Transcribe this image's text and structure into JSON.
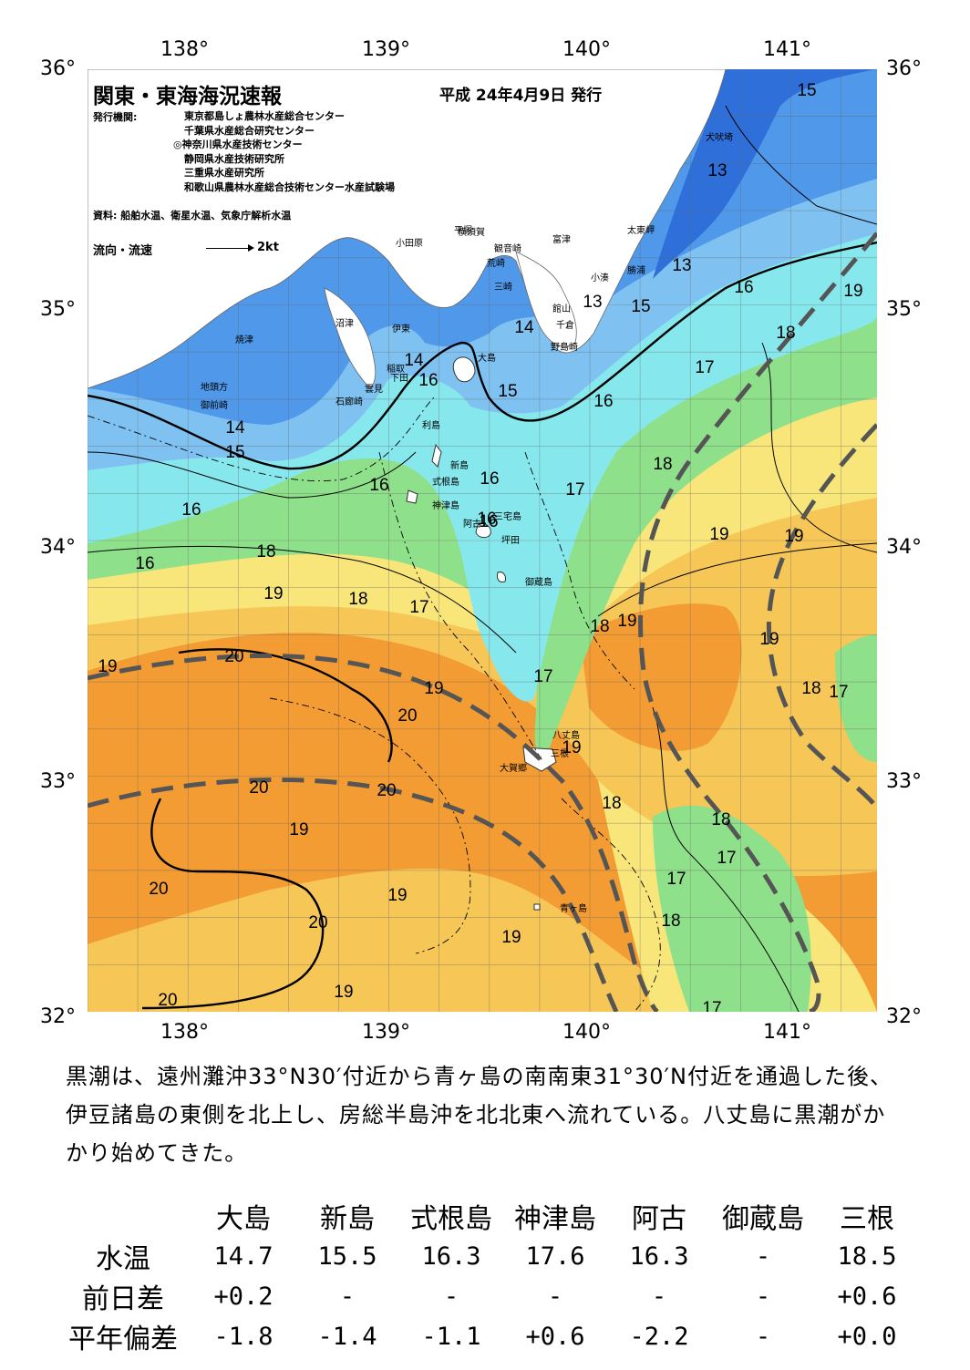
{
  "header": {
    "title": "関東・東海海況速報",
    "date": "平成 24年4月9日 発行",
    "issuer_label": "発行機関:",
    "issuers": [
      "東京都島しょ農林水産総合センター",
      "千葉県水産総合研究センター",
      "◎神奈川県水産技術センター",
      "静岡県水産技術研究所",
      "三重県水産研究所",
      "和歌山県農林水産総合技術センター水産試験場"
    ],
    "sources": "資料: 船舶水温、衛星水温、気象庁解析水温",
    "flow_label": "流向・流速",
    "flow_scale": "2kt"
  },
  "axes": {
    "lon_labels": [
      "138°",
      "139°",
      "140°",
      "141°"
    ],
    "lat_labels": [
      "36°",
      "35°",
      "34°",
      "33°",
      "32°"
    ]
  },
  "colors": {
    "c13": "#2f6fd9",
    "c14": "#4f98ea",
    "c15": "#7fc2f2",
    "c16": "#86e8ec",
    "c17": "#8fe08a",
    "c18": "#f8e67a",
    "c19": "#f6c657",
    "c20": "#f39c33",
    "land": "#ffffff"
  },
  "isotherm_labels": [
    {
      "t": "15"
    },
    {
      "t": "13"
    },
    {
      "t": "13"
    },
    {
      "t": "16"
    },
    {
      "t": "19"
    },
    {
      "t": "15"
    },
    {
      "t": "13"
    },
    {
      "t": "14"
    },
    {
      "t": "18"
    },
    {
      "t": "17"
    },
    {
      "t": "14"
    },
    {
      "t": "16"
    },
    {
      "t": "15"
    },
    {
      "t": "16"
    },
    {
      "t": "14"
    },
    {
      "t": "15"
    },
    {
      "t": "16"
    },
    {
      "t": "16"
    },
    {
      "t": "17"
    },
    {
      "t": "18"
    },
    {
      "t": "16"
    },
    {
      "t": "16"
    },
    {
      "t": "16"
    },
    {
      "t": "19"
    },
    {
      "t": "19"
    },
    {
      "t": "16"
    },
    {
      "t": "18"
    },
    {
      "t": "19"
    },
    {
      "t": "18"
    },
    {
      "t": "17"
    },
    {
      "t": "18"
    },
    {
      "t": "19"
    },
    {
      "t": "19"
    },
    {
      "t": "19"
    },
    {
      "t": "20"
    },
    {
      "t": "18"
    },
    {
      "t": "17"
    },
    {
      "t": "19"
    },
    {
      "t": "17"
    },
    {
      "t": "20"
    },
    {
      "t": "19"
    },
    {
      "t": "20"
    },
    {
      "t": "20"
    },
    {
      "t": "18"
    },
    {
      "t": "18"
    },
    {
      "t": "19"
    },
    {
      "t": "17"
    },
    {
      "t": "17"
    },
    {
      "t": "20"
    },
    {
      "t": "19"
    },
    {
      "t": "18"
    },
    {
      "t": "20"
    },
    {
      "t": "19"
    },
    {
      "t": "19"
    },
    {
      "t": "20"
    },
    {
      "t": "17"
    }
  ],
  "place_names": [
    "犬吠埼",
    "太東岬",
    "勝浦",
    "小湊",
    "富津",
    "横須賀",
    "観音崎",
    "平塚",
    "小田原",
    "荒崎",
    "三崎",
    "館山",
    "千倉",
    "野島崎",
    "沼津",
    "伊東",
    "焼津",
    "稲取",
    "下田",
    "雲見",
    "石廊崎",
    "地頭方",
    "御前崎",
    "大島",
    "利島",
    "新島",
    "式根島",
    "神津島",
    "三宅島",
    "阿古",
    "坪田",
    "御蔵島",
    "八丈島",
    "三根",
    "大賀郷",
    "青ヶ島"
  ],
  "summary": "黒潮は、遠州灘沖33°N30′付近から青ヶ島の南南東31°30′N付近を通過した後、伊豆諸島の東側を北上し、房総半島沖を北北東へ流れている。八丈島に黒潮がかかり始めてきた。",
  "table": {
    "columns": [
      "大島",
      "新島",
      "式根島",
      "神津島",
      "阿古",
      "御蔵島",
      "三根"
    ],
    "rows": [
      {
        "label": "水温",
        "values": [
          "14.7",
          "15.5",
          "16.3",
          "17.6",
          "16.3",
          "-",
          "18.5"
        ]
      },
      {
        "label": "前日差",
        "values": [
          "+0.2",
          "-",
          "-",
          "-",
          "-",
          "-",
          "+0.6"
        ]
      },
      {
        "label": "平年偏差",
        "values": [
          "-1.8",
          "-1.4",
          "-1.1",
          "+0.6",
          "-2.2",
          "-",
          "+0.0"
        ]
      }
    ]
  }
}
